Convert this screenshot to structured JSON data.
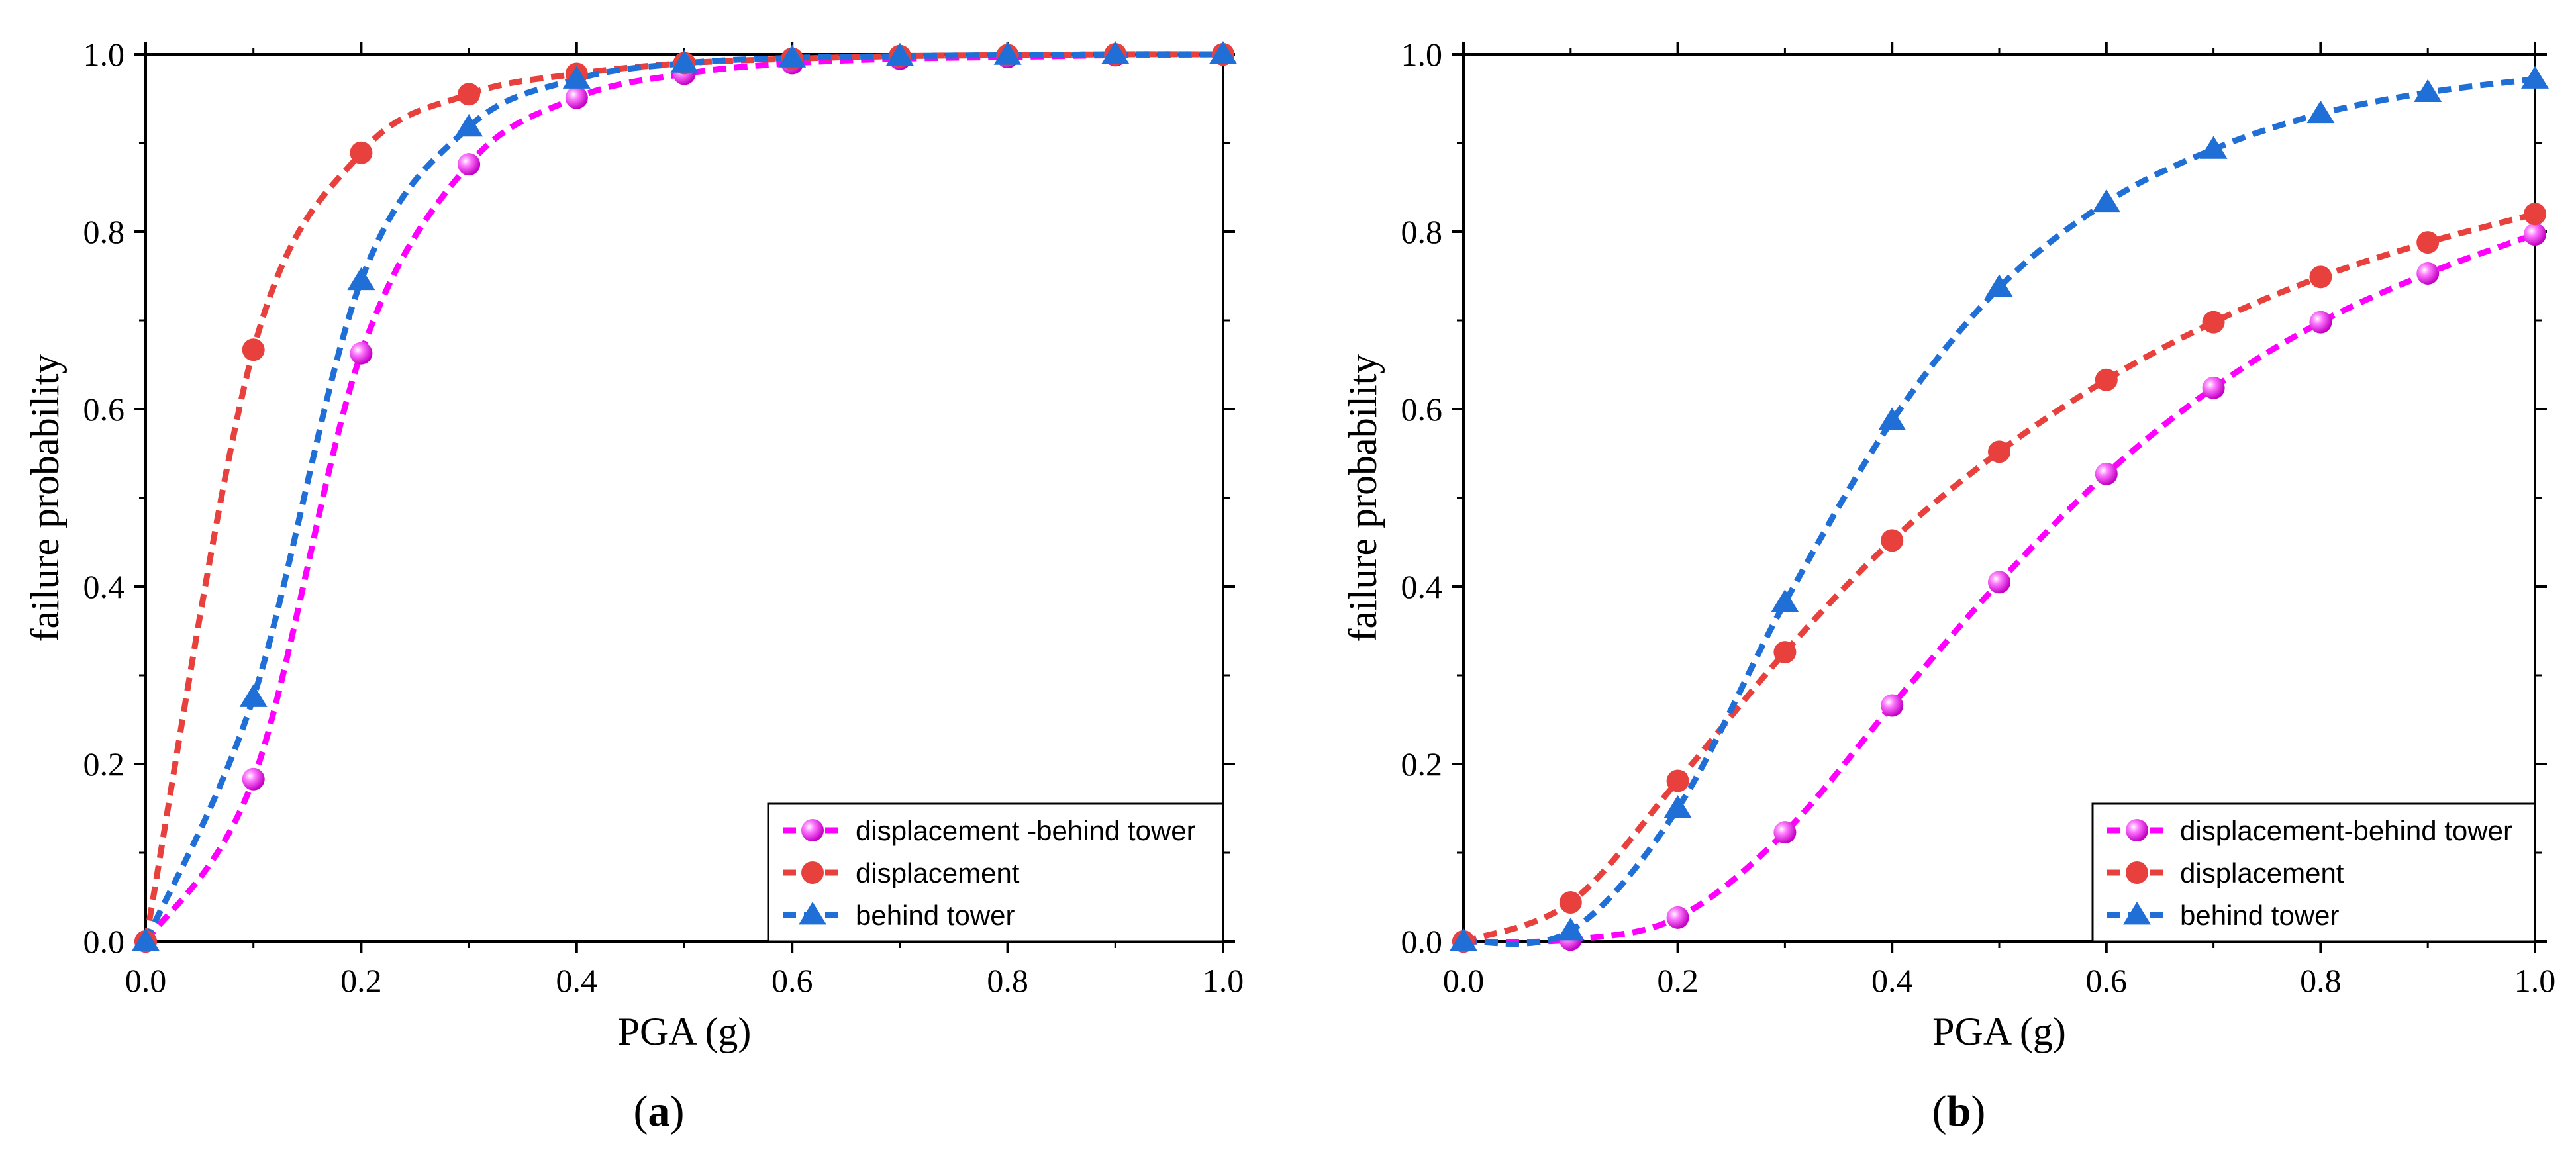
{
  "chart_data": [
    {
      "type": "line",
      "panel_label": "(a)",
      "panel_letter": "a",
      "xlabel": "PGA (g)",
      "ylabel": "failure probability",
      "xlim": [
        0.0,
        1.0
      ],
      "ylim": [
        0.0,
        1.0
      ],
      "xticks": [
        "0.0",
        "0.2",
        "0.4",
        "0.6",
        "0.8",
        "1.0"
      ],
      "yticks": [
        "0.0",
        "0.2",
        "0.4",
        "0.6",
        "0.8",
        "1.0"
      ],
      "grid": false,
      "legend_position": "bottom-right",
      "x": [
        0.0,
        0.1,
        0.2,
        0.3,
        0.4,
        0.5,
        0.6,
        0.7,
        0.8,
        0.9,
        1.0
      ],
      "series": [
        {
          "name": "displacement -behind tower",
          "color": "#ff00ff",
          "marker": "sphere",
          "values": [
            0.0,
            0.183,
            0.663,
            0.876,
            0.951,
            0.978,
            0.99,
            0.995,
            0.997,
            0.999,
            1.0
          ]
        },
        {
          "name": "displacement",
          "color": "#e8403c",
          "marker": "circle",
          "values": [
            0.0,
            0.667,
            0.889,
            0.955,
            0.978,
            0.99,
            0.995,
            0.998,
            0.999,
            1.0,
            1.0
          ]
        },
        {
          "name": "behind tower",
          "color": "#1f6fd6",
          "marker": "triangle",
          "values": [
            0.0,
            0.275,
            0.745,
            0.918,
            0.972,
            0.99,
            0.996,
            0.998,
            0.999,
            1.0,
            1.0
          ]
        }
      ]
    },
    {
      "type": "line",
      "panel_label": "(b)",
      "panel_letter": "b",
      "xlabel": "PGA (g)",
      "ylabel": "failure probability",
      "xlim": [
        0.0,
        1.0
      ],
      "ylim": [
        0.0,
        1.0
      ],
      "xticks": [
        "0.0",
        "0.2",
        "0.4",
        "0.6",
        "0.8",
        "1.0"
      ],
      "yticks": [
        "0.0",
        "0.2",
        "0.4",
        "0.6",
        "0.8",
        "1.0"
      ],
      "grid": false,
      "legend_position": "bottom-right",
      "x": [
        0.0,
        0.1,
        0.2,
        0.3,
        0.4,
        0.5,
        0.6,
        0.7,
        0.8,
        0.9,
        1.0
      ],
      "series": [
        {
          "name": "displacement-behind tower",
          "color": "#ff00ff",
          "marker": "sphere",
          "values": [
            0.0,
            0.002,
            0.027,
            0.123,
            0.266,
            0.405,
            0.527,
            0.624,
            0.698,
            0.753,
            0.797
          ]
        },
        {
          "name": "displacement",
          "color": "#e8403c",
          "marker": "circle",
          "values": [
            0.0,
            0.044,
            0.181,
            0.326,
            0.452,
            0.552,
            0.633,
            0.698,
            0.749,
            0.788,
            0.82
          ]
        },
        {
          "name": "behind tower",
          "color": "#1f6fd6",
          "marker": "triangle",
          "values": [
            0.0,
            0.012,
            0.15,
            0.382,
            0.587,
            0.737,
            0.833,
            0.893,
            0.933,
            0.957,
            0.972
          ]
        }
      ]
    }
  ]
}
